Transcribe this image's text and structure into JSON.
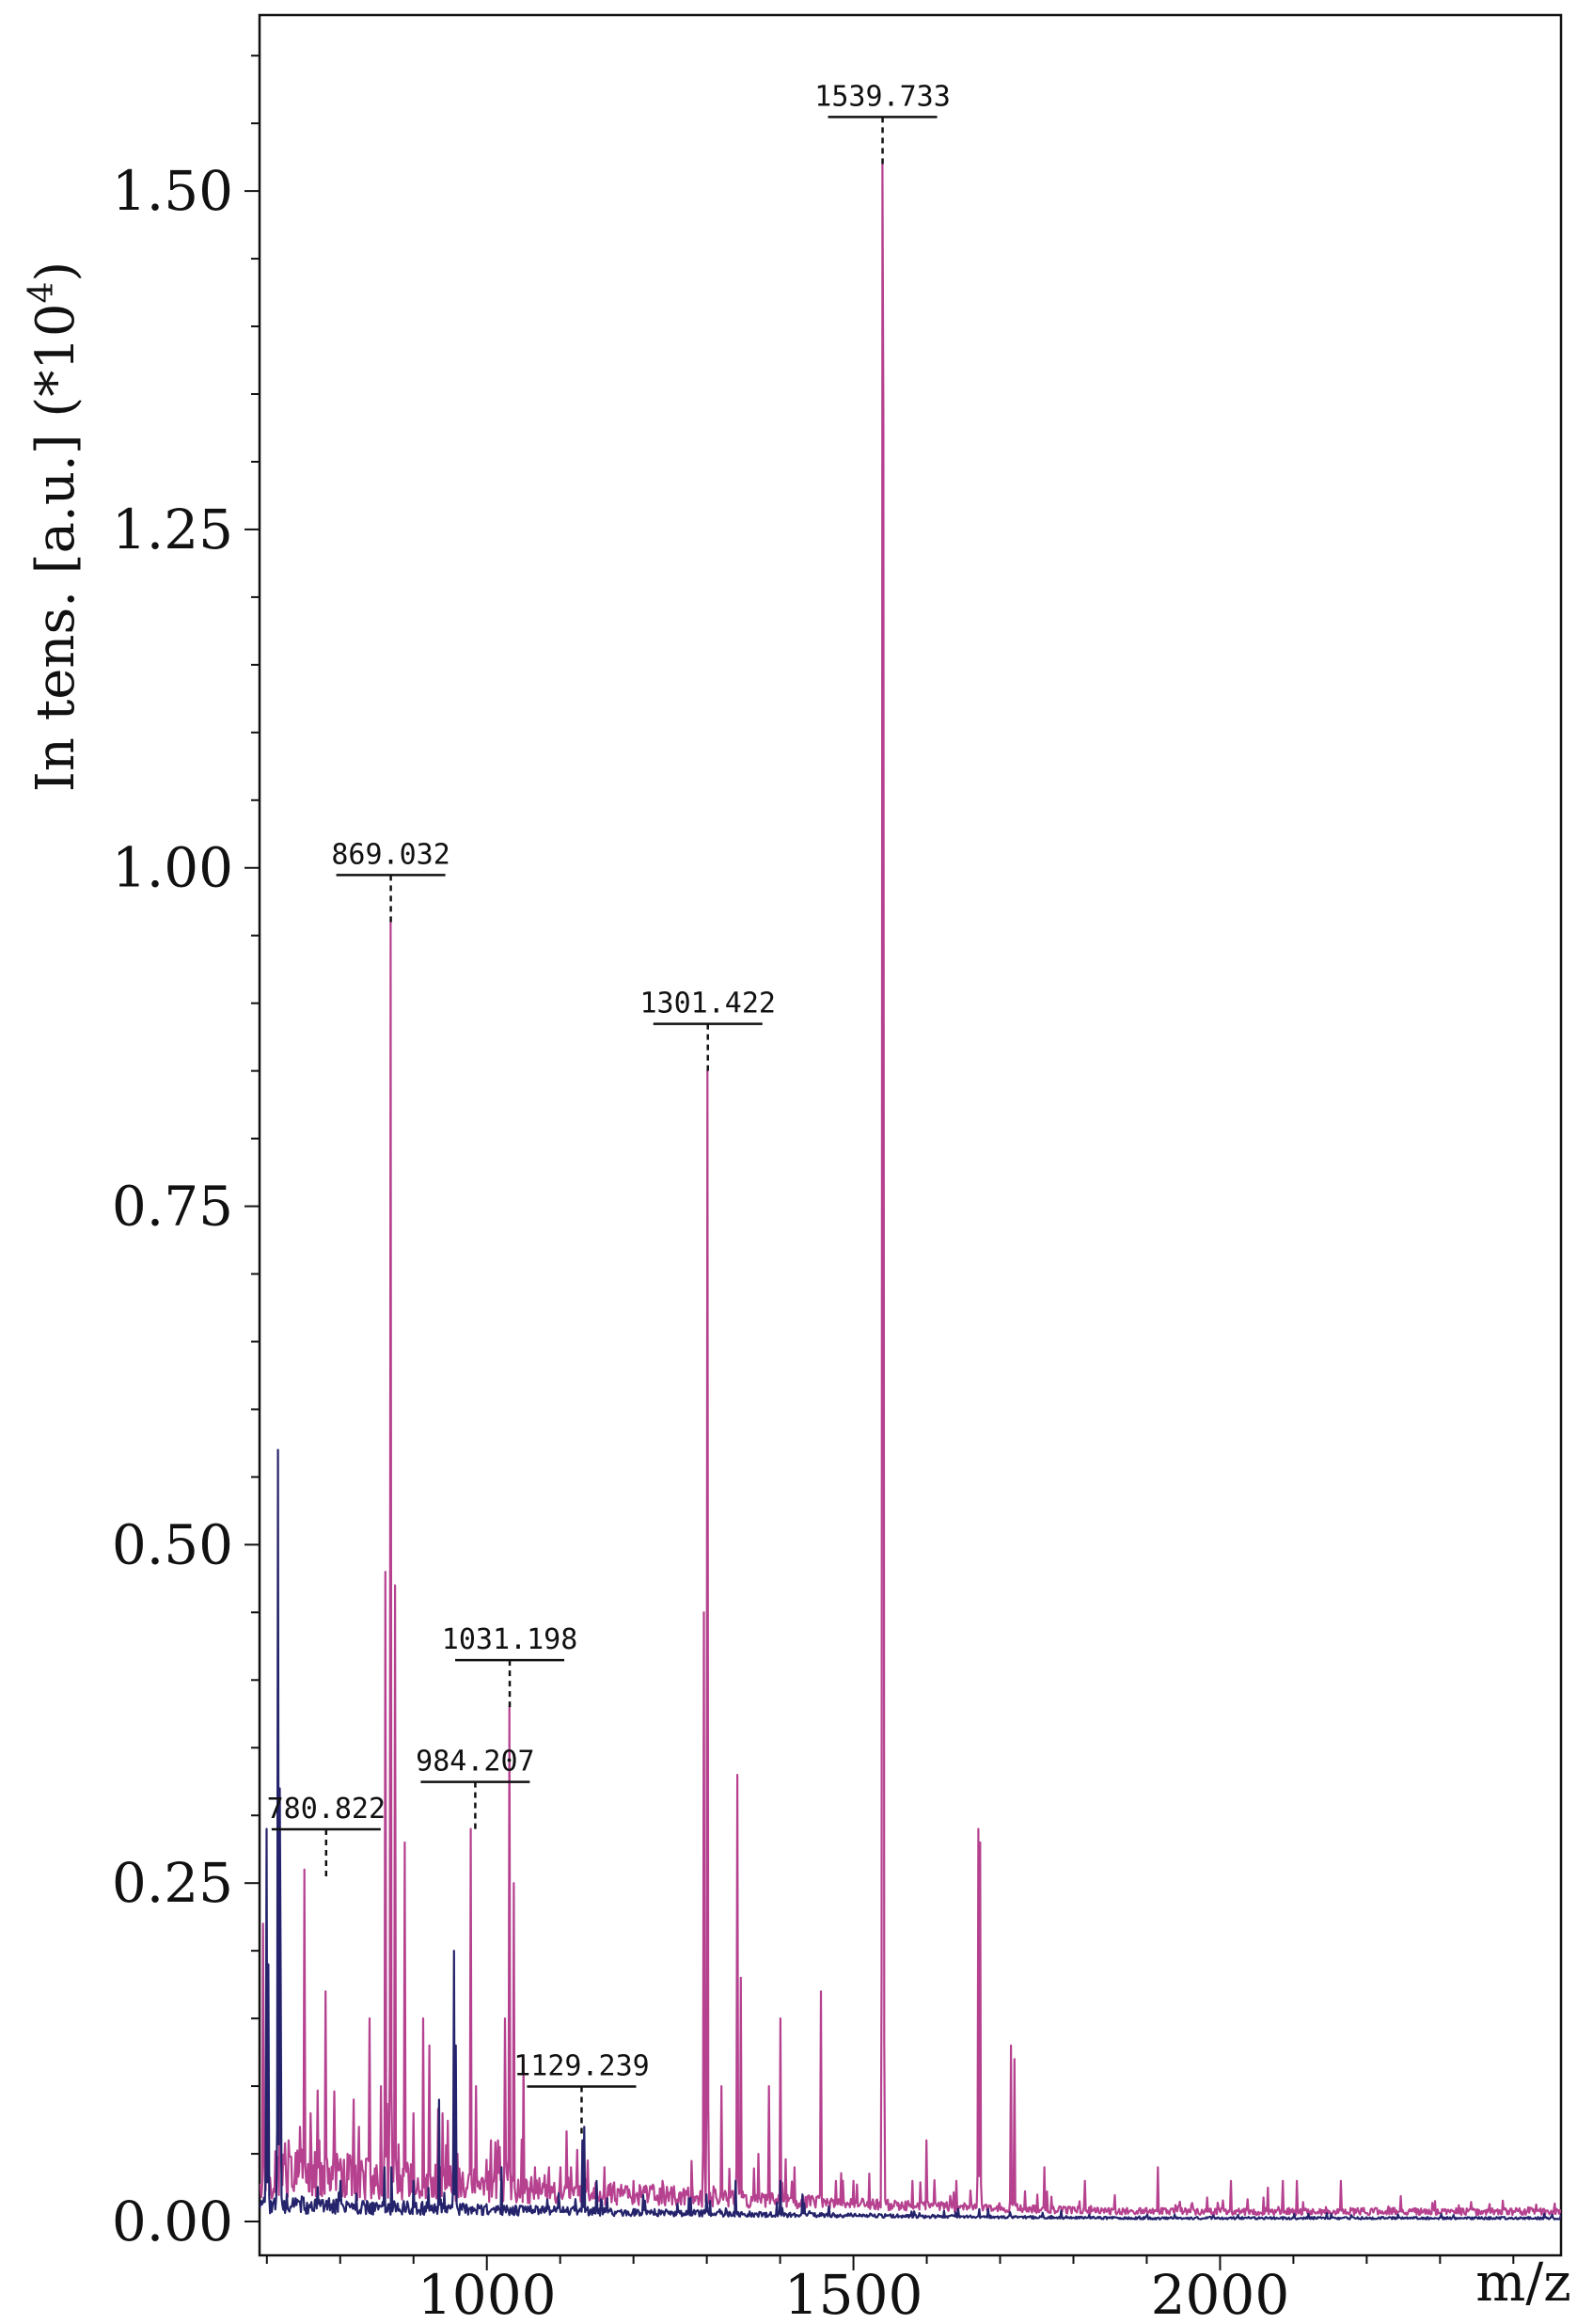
{
  "chart_data": {
    "type": "line",
    "ylabel": "In tens. [a.u.] (*10",
    "ylabel_sup": "4",
    "ylabel_close": ")",
    "xlabel": "m/z",
    "xlim": [
      690,
      2465
    ],
    "ylim": [
      -0.025,
      1.63
    ],
    "x_ticks": [
      {
        "value": 1000,
        "label": "1000"
      },
      {
        "value": 1500,
        "label": "1500"
      },
      {
        "value": 2000,
        "label": "2000"
      }
    ],
    "y_ticks": [
      {
        "value": 0.0,
        "label": "0.00"
      },
      {
        "value": 0.25,
        "label": "0.25"
      },
      {
        "value": 0.5,
        "label": "0.50"
      },
      {
        "value": 0.75,
        "label": "0.75"
      },
      {
        "value": 1.0,
        "label": "1.00"
      },
      {
        "value": 1.25,
        "label": "1.25"
      },
      {
        "value": 1.5,
        "label": "1.50"
      }
    ],
    "y_minor_step": 0.05,
    "x_minor_step": 100,
    "series": [
      {
        "color": "#b5418f",
        "baseline": 0.012,
        "noise": 0.035,
        "peaks": [
          [
            695,
            0.22
          ],
          [
            700,
            0.12
          ],
          [
            718,
            0.1
          ],
          [
            730,
            0.06
          ],
          [
            745,
            0.07
          ],
          [
            751,
            0.26
          ],
          [
            760,
            0.08
          ],
          [
            772,
            0.06
          ],
          [
            780,
            0.17
          ],
          [
            795,
            0.05
          ],
          [
            810,
            0.05
          ],
          [
            825,
            0.07
          ],
          [
            840,
            0.15
          ],
          [
            855,
            0.1
          ],
          [
            862,
            0.48
          ],
          [
            869,
            0.96
          ],
          [
            875,
            0.47
          ],
          [
            888,
            0.28
          ],
          [
            900,
            0.08
          ],
          [
            913,
            0.15
          ],
          [
            922,
            0.13
          ],
          [
            940,
            0.08
          ],
          [
            960,
            0.05
          ],
          [
            978,
            0.29
          ],
          [
            985,
            0.1
          ],
          [
            1005,
            0.06
          ],
          [
            1015,
            0.06
          ],
          [
            1025,
            0.15
          ],
          [
            1031,
            0.38
          ],
          [
            1037,
            0.25
          ],
          [
            1050,
            0.12
          ],
          [
            1065,
            0.04
          ],
          [
            1085,
            0.04
          ],
          [
            1100,
            0.04
          ],
          [
            1115,
            0.04
          ],
          [
            1130,
            0.06
          ],
          [
            1160,
            0.04
          ],
          [
            1200,
            0.03
          ],
          [
            1240,
            0.03
          ],
          [
            1296,
            0.45
          ],
          [
            1301,
            0.85
          ],
          [
            1320,
            0.1
          ],
          [
            1342,
            0.33
          ],
          [
            1346,
            0.18
          ],
          [
            1370,
            0.05
          ],
          [
            1385,
            0.1
          ],
          [
            1400,
            0.15
          ],
          [
            1420,
            0.04
          ],
          [
            1455,
            0.17
          ],
          [
            1476,
            0.03
          ],
          [
            1500,
            0.03
          ],
          [
            1539,
            1.52
          ],
          [
            1541,
            1.33
          ],
          [
            1580,
            0.03
          ],
          [
            1600,
            0.06
          ],
          [
            1640,
            0.03
          ],
          [
            1670,
            0.29
          ],
          [
            1673,
            0.28
          ],
          [
            1715,
            0.13
          ],
          [
            1720,
            0.12
          ],
          [
            1760,
            0.04
          ],
          [
            1815,
            0.03
          ],
          [
            1915,
            0.04
          ],
          [
            2015,
            0.03
          ],
          [
            2065,
            0.025
          ],
          [
            2085,
            0.03
          ],
          [
            2105,
            0.03
          ],
          [
            2165,
            0.03
          ],
          [
            2325,
            0.012
          ]
        ]
      },
      {
        "color": "#24236b",
        "baseline": 0.004,
        "noise": 0.012,
        "peaks": [
          [
            700,
            0.29
          ],
          [
            702,
            0.19
          ],
          [
            715,
            0.57
          ],
          [
            717,
            0.32
          ],
          [
            719,
            0.18
          ],
          [
            800,
            0.03
          ],
          [
            860,
            0.04
          ],
          [
            870,
            0.04
          ],
          [
            900,
            0.03
          ],
          [
            935,
            0.09
          ],
          [
            955,
            0.2
          ],
          [
            958,
            0.13
          ],
          [
            1020,
            0.04
          ],
          [
            1130,
            0.06
          ],
          [
            1133,
            0.07
          ],
          [
            1150,
            0.03
          ],
          [
            1300,
            0.02
          ],
          [
            1339,
            0.03
          ],
          [
            1400,
            0.03
          ],
          [
            1430,
            0.02
          ]
        ]
      }
    ],
    "annotations": [
      {
        "label": "780.822",
        "x": 780.822,
        "y": 0.255
      },
      {
        "label": "869.032",
        "x": 869.032,
        "y": 0.96
      },
      {
        "label": "984.207",
        "x": 984.207,
        "y": 0.29
      },
      {
        "label": "1031.198",
        "x": 1031.198,
        "y": 0.38
      },
      {
        "label": "1129.239",
        "x": 1129.239,
        "y": 0.065
      },
      {
        "label": "1301.422",
        "x": 1301.422,
        "y": 0.85
      },
      {
        "label": "1539.733",
        "x": 1539.733,
        "y": 1.52
      }
    ]
  }
}
